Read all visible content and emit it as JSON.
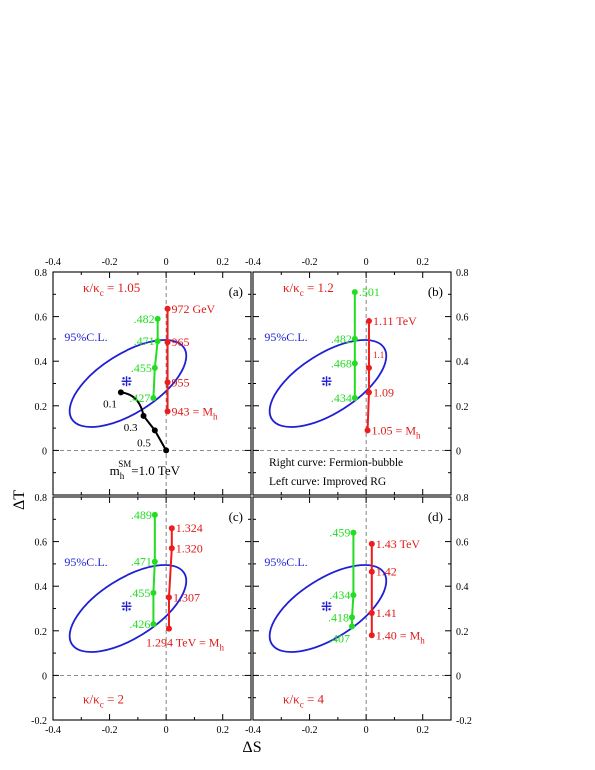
{
  "figure": {
    "xlabel": "ΔS",
    "ylabel": "ΔT",
    "xticks": [
      "-0.4",
      "-0.2",
      "0",
      "0.2"
    ],
    "yticks": [
      "-0.2",
      "0",
      "0.2",
      "0.4",
      "0.6",
      "0.8"
    ],
    "colors": {
      "ellipse": "#1f1fd6",
      "green": "#22dd22",
      "red": "#ee1c1c",
      "black": "#000000",
      "text_red": "#e01b1b"
    }
  },
  "chart_data": [
    {
      "type": "line",
      "panel": "(a)",
      "param": {
        "prefix": "κ/κ",
        "sub": "c",
        "value": " = 1.05",
        "pos": "top"
      },
      "xlim": [
        -0.4,
        0.3
      ],
      "ylim": [
        -0.2,
        0.8
      ],
      "ellipse_label": "95%C.L.",
      "center": {
        "x": -0.14,
        "y": 0.31
      },
      "series": [
        {
          "color": "green",
          "points": [
            {
              "x": -0.03,
              "y": 0.59,
              "label": ".482",
              "side": "left"
            },
            {
              "x": -0.03,
              "y": 0.49,
              "label": ".471",
              "side": "left"
            },
            {
              "x": -0.04,
              "y": 0.37,
              "label": ".455",
              "side": "left"
            },
            {
              "x": -0.045,
              "y": 0.235,
              "label": ".427",
              "side": "left"
            }
          ]
        },
        {
          "color": "red",
          "points": [
            {
              "x": 0.005,
              "y": 0.635,
              "label": "972 GeV",
              "side": "right"
            },
            {
              "x": 0.005,
              "y": 0.485,
              "label": "965",
              "side": "right"
            },
            {
              "x": 0.005,
              "y": 0.305,
              "label": "955",
              "side": "right"
            },
            {
              "x": 0.005,
              "y": 0.175,
              "label": "943 = M",
              "sub": "h",
              "side": "right"
            }
          ]
        },
        {
          "color": "black",
          "points": [
            {
              "x": -0.16,
              "y": 0.26,
              "label": "0.1",
              "side": "left-below"
            },
            {
              "x": -0.08,
              "y": 0.155,
              "label": "0.3",
              "side": "below"
            },
            {
              "x": -0.04,
              "y": 0.09,
              "label": "0.5",
              "side": "below-left"
            },
            {
              "x": 0.0,
              "y": 0.0,
              "label": "",
              "side": "none"
            }
          ]
        }
      ],
      "extra_label": {
        "main": "m",
        "sub": "h",
        "sup": "SM",
        "rest": "=1.0 TeV"
      }
    },
    {
      "type": "line",
      "panel": "(b)",
      "param": {
        "prefix": "κ/κ",
        "sub": "c",
        "value": " = 1.2",
        "pos": "top"
      },
      "xlim": [
        -0.4,
        0.3
      ],
      "ylim": [
        -0.2,
        0.8
      ],
      "ellipse_label": "95%C.L.",
      "center": {
        "x": -0.14,
        "y": 0.31
      },
      "series": [
        {
          "color": "green",
          "points": [
            {
              "x": -0.04,
              "y": 0.71,
              "label": ".501",
              "side": "right"
            },
            {
              "x": -0.04,
              "y": 0.5,
              "label": ".482",
              "side": "left"
            },
            {
              "x": -0.04,
              "y": 0.39,
              "label": ".468",
              "side": "left"
            },
            {
              "x": -0.04,
              "y": 0.235,
              "label": ".434",
              "side": "left"
            }
          ]
        },
        {
          "color": "red",
          "points": [
            {
              "x": 0.01,
              "y": 0.58,
              "label": "1.11 TeV",
              "side": "right"
            },
            {
              "x": 0.01,
              "y": 0.37,
              "label": "1.1",
              "side": "right-small"
            },
            {
              "x": 0.01,
              "y": 0.26,
              "label": "1.09",
              "side": "right"
            },
            {
              "x": 0.005,
              "y": 0.09,
              "label": "1.05 = M",
              "sub": "h",
              "side": "right"
            }
          ]
        }
      ],
      "notes": [
        "Right curve: Fermion-bubble",
        "Left curve: Improved RG"
      ]
    },
    {
      "type": "line",
      "panel": "(c)",
      "param": {
        "prefix": "κ/κ",
        "sub": "c",
        "value": " = 2",
        "pos": "bottom"
      },
      "xlim": [
        -0.4,
        0.3
      ],
      "ylim": [
        -0.2,
        0.8
      ],
      "ellipse_label": "95%C.L.",
      "center": {
        "x": -0.14,
        "y": 0.31
      },
      "series": [
        {
          "color": "green",
          "points": [
            {
              "x": -0.04,
              "y": 0.72,
              "label": ".489",
              "side": "left"
            },
            {
              "x": -0.04,
              "y": 0.51,
              "label": ".471",
              "side": "left"
            },
            {
              "x": -0.045,
              "y": 0.37,
              "label": ".455",
              "side": "left"
            },
            {
              "x": -0.045,
              "y": 0.23,
              "label": ".426",
              "side": "left"
            }
          ]
        },
        {
          "color": "red",
          "points": [
            {
              "x": 0.02,
              "y": 0.66,
              "label": "1.324",
              "side": "right"
            },
            {
              "x": 0.02,
              "y": 0.57,
              "label": "1.320",
              "side": "right"
            },
            {
              "x": 0.01,
              "y": 0.35,
              "label": "1.307",
              "side": "right"
            },
            {
              "x": 0.01,
              "y": 0.21,
              "label": "1.294 TeV = M",
              "sub": "h",
              "side": "below"
            }
          ]
        }
      ]
    },
    {
      "type": "line",
      "panel": "(d)",
      "param": {
        "prefix": "κ/κ",
        "sub": "c",
        "value": " = 4",
        "pos": "bottom"
      },
      "xlim": [
        -0.4,
        0.3
      ],
      "ylim": [
        -0.2,
        0.8
      ],
      "ellipse_label": "95%C.L.",
      "center": {
        "x": -0.14,
        "y": 0.31
      },
      "series": [
        {
          "color": "green",
          "points": [
            {
              "x": -0.045,
              "y": 0.64,
              "label": ".459",
              "side": "left"
            },
            {
              "x": -0.045,
              "y": 0.36,
              "label": ".434",
              "side": "left"
            },
            {
              "x": -0.05,
              "y": 0.26,
              "label": ".418",
              "side": "left"
            },
            {
              "x": -0.05,
              "y": 0.22,
              "label": ".407",
              "side": "below-left"
            }
          ]
        },
        {
          "color": "red",
          "points": [
            {
              "x": 0.02,
              "y": 0.59,
              "label": "1.43 TeV",
              "side": "right"
            },
            {
              "x": 0.02,
              "y": 0.465,
              "label": "1.42",
              "side": "right"
            },
            {
              "x": 0.02,
              "y": 0.28,
              "label": "1.41",
              "side": "right"
            },
            {
              "x": 0.02,
              "y": 0.18,
              "label": "1.40 = M",
              "sub": "h",
              "side": "right"
            }
          ]
        }
      ]
    }
  ]
}
